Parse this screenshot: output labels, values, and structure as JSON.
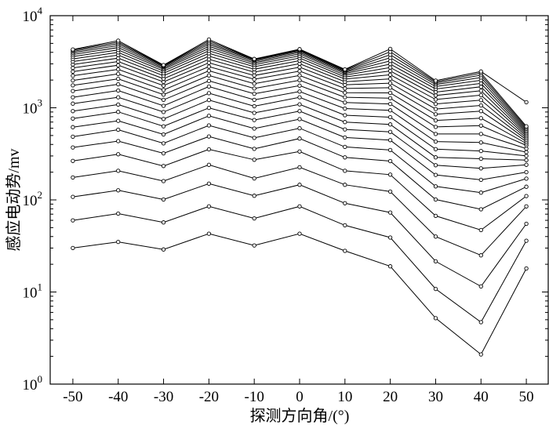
{
  "chart_data": {
    "type": "line",
    "xlabel": "探测方向角/(°)",
    "ylabel": "感应电动势/mv",
    "yscale": "log",
    "ylim": [
      1,
      10000
    ],
    "xlim": [
      -55,
      55
    ],
    "x": [
      -50,
      -40,
      -30,
      -20,
      -10,
      0,
      10,
      20,
      30,
      40,
      50
    ],
    "x_tick_labels": [
      "-50",
      "-40",
      "-30",
      "-20",
      "-10",
      "0",
      "10",
      "20",
      "30",
      "40",
      "50"
    ],
    "y_ticks": [
      {
        "base": "10",
        "exp": "0"
      },
      {
        "base": "10",
        "exp": "1"
      },
      {
        "base": "10",
        "exp": "2"
      },
      {
        "base": "10",
        "exp": "3"
      },
      {
        "base": "10",
        "exp": "4"
      }
    ],
    "grid": false,
    "marker": "open-circle",
    "color": "#000000",
    "series": [
      {
        "values": [
          30,
          35,
          29,
          43,
          32,
          43,
          28,
          19,
          5.2,
          2.1,
          18
        ]
      },
      {
        "values": [
          60,
          71,
          57,
          85,
          63,
          85,
          53,
          39,
          10.8,
          4.7,
          36
        ]
      },
      {
        "values": [
          108,
          127,
          101,
          150,
          111,
          146,
          92,
          73,
          21.5,
          11.5,
          55
        ]
      },
      {
        "values": [
          175,
          207,
          160,
          240,
          171,
          226,
          146,
          123,
          40,
          25,
          85
        ]
      },
      {
        "values": [
          265,
          313,
          233,
          354,
          273,
          335,
          207,
          188,
          67,
          47,
          110
        ]
      },
      {
        "values": [
          371,
          435,
          320,
          488,
          358,
          464,
          289,
          264,
          101,
          79,
          139
        ]
      },
      {
        "values": [
          485,
          578,
          411,
          644,
          471,
          600,
          376,
          348,
          140,
          120,
          170
        ]
      },
      {
        "values": [
          616,
          722,
          514,
          817,
          595,
          752,
          476,
          445,
          187,
          165,
          200
        ]
      },
      {
        "values": [
          763,
          904,
          630,
          998,
          736,
          920,
          582,
          547,
          238,
          220,
          240
        ]
      },
      {
        "values": [
          920,
          1084,
          756,
          1215,
          880,
          1090,
          700,
          660,
          290,
          280,
          270
        ]
      },
      {
        "values": [
          1110,
          1301,
          900,
          1440,
          1040,
          1300,
          830,
          790,
          355,
          340,
          300
        ]
      },
      {
        "values": [
          1300,
          1540,
          1050,
          1700,
          1220,
          1500,
          980,
          940,
          430,
          420,
          330
        ]
      },
      {
        "values": [
          1520,
          1800,
          1220,
          1960,
          1420,
          1740,
          1140,
          1100,
          520,
          520,
          360
        ]
      },
      {
        "values": [
          1750,
          2060,
          1390,
          2240,
          1620,
          1990,
          1300,
          1270,
          620,
          640,
          390
        ]
      },
      {
        "values": [
          1980,
          2330,
          1560,
          2520,
          1830,
          2240,
          1460,
          1450,
          730,
          770,
          410
        ]
      },
      {
        "values": [
          2230,
          2610,
          1740,
          2800,
          2040,
          2500,
          1620,
          1650,
          850,
          920,
          430
        ]
      },
      {
        "values": [
          2470,
          2900,
          1910,
          3080,
          2240,
          2760,
          1780,
          1850,
          970,
          1060,
          450
        ]
      },
      {
        "values": [
          2710,
          3180,
          2070,
          3360,
          2440,
          3010,
          1920,
          2060,
          1100,
          1210,
          470
        ]
      },
      {
        "values": [
          2950,
          3460,
          2230,
          3630,
          2620,
          3250,
          2050,
          2280,
          1230,
          1370,
          490
        ]
      },
      {
        "values": [
          3180,
          3730,
          2370,
          3900,
          2790,
          3470,
          2160,
          2510,
          1360,
          1530,
          510
        ]
      },
      {
        "values": [
          3400,
          3990,
          2500,
          4160,
          2940,
          3670,
          2260,
          2740,
          1480,
          1690,
          530
        ]
      },
      {
        "values": [
          3600,
          4250,
          2610,
          4410,
          3070,
          3850,
          2350,
          2980,
          1600,
          1840,
          550
        ]
      },
      {
        "values": [
          3790,
          4500,
          2700,
          4650,
          3180,
          4000,
          2420,
          3230,
          1700,
          1990,
          570
        ]
      },
      {
        "values": [
          3960,
          4740,
          2780,
          4880,
          3270,
          4120,
          2480,
          3490,
          1790,
          2130,
          590
        ]
      },
      {
        "values": [
          4100,
          4960,
          2840,
          5100,
          3330,
          4210,
          2530,
          3770,
          1860,
          2260,
          610
        ]
      },
      {
        "values": [
          4220,
          5160,
          2880,
          5310,
          3370,
          4280,
          2580,
          4060,
          1920,
          2380,
          630
        ]
      },
      {
        "values": [
          4300,
          5350,
          2910,
          5510,
          3390,
          4330,
          2610,
          4360,
          1970,
          2480,
          1150
        ]
      }
    ]
  }
}
